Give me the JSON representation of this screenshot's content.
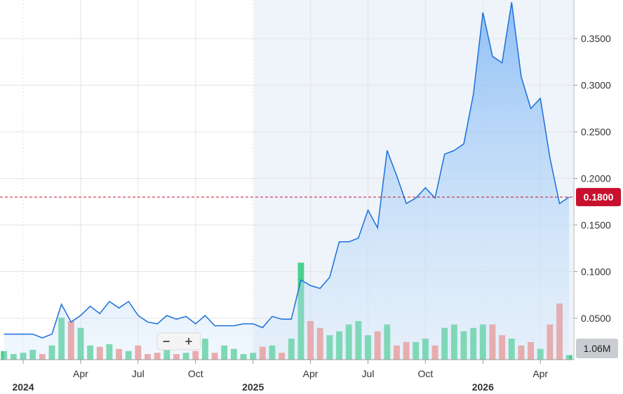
{
  "chart_data": {
    "type": "line",
    "x": [
      -1,
      -0.5,
      0,
      0.5,
      1,
      1.5,
      2,
      2.5,
      3,
      3.5,
      4,
      4.5,
      5,
      5.5,
      6,
      6.5,
      7,
      7.5,
      8,
      8.5,
      9,
      9.5,
      10,
      10.5,
      11,
      11.5,
      12,
      12.5,
      13,
      13.5,
      14,
      14.5,
      15,
      15.5,
      16,
      16.5,
      17,
      17.5,
      18,
      18.5,
      19,
      19.5,
      20,
      20.5,
      21,
      21.5,
      22,
      22.5,
      23,
      23.5,
      24,
      24.5,
      25,
      25.5,
      26,
      26.5,
      27,
      27.5,
      28,
      28.5
    ],
    "series": [
      {
        "color": "#1a6fdc",
        "values": [
          0.033,
          0.033,
          0.033,
          0.033,
          0.029,
          0.033,
          0.065,
          0.046,
          0.053,
          0.063,
          0.055,
          0.068,
          0.061,
          0.068,
          0.053,
          0.046,
          0.044,
          0.053,
          0.049,
          0.052,
          0.044,
          0.053,
          0.042,
          0.042,
          0.042,
          0.044,
          0.044,
          0.04,
          0.052,
          0.049,
          0.049,
          0.091,
          0.085,
          0.082,
          0.094,
          0.132,
          0.132,
          0.136,
          0.166,
          0.147,
          0.23,
          0.203,
          0.173,
          0.179,
          0.19,
          0.179,
          0.226,
          0.23,
          0.237,
          0.29,
          0.378,
          0.331,
          0.324,
          0.389,
          0.309,
          0.275,
          0.286,
          0.222,
          0.173,
          0.18
        ]
      }
    ],
    "volume": {
      "values": [
        2.0,
        1.3,
        1.6,
        2.3,
        1.3,
        3.3,
        9.8,
        9.0,
        7.4,
        3.3,
        3.0,
        3.6,
        2.5,
        2.0,
        3.3,
        1.3,
        1.6,
        3.3,
        1.3,
        1.6,
        2.0,
        4.9,
        1.6,
        3.3,
        2.5,
        1.3,
        1.6,
        3.0,
        3.3,
        1.6,
        4.9,
        22.6,
        9.0,
        7.4,
        5.7,
        6.6,
        8.2,
        9.0,
        5.7,
        6.6,
        8.2,
        3.3,
        4.1,
        4.1,
        4.9,
        3.3,
        7.4,
        8.2,
        6.6,
        7.4,
        8.2,
        8.2,
        5.7,
        4.9,
        3.3,
        4.1,
        2.5,
        8.2,
        13.1,
        1.06
      ],
      "last_label": "1.06M",
      "ylim": [
        0,
        25
      ],
      "up_color": "#4ccf8e",
      "down_color": "#f28b82"
    },
    "last_price": {
      "value": 0.18,
      "label": "0.1800",
      "color": "#c8102e"
    },
    "xlim": [
      -1.21,
      28.75
    ],
    "xticks": [
      {
        "value": 0,
        "label": "2024"
      },
      {
        "value": 3,
        "label": "Apr"
      },
      {
        "value": 6,
        "label": "Jul"
      },
      {
        "value": 9,
        "label": "Oct"
      },
      {
        "value": 12,
        "label": "2025"
      },
      {
        "value": 15,
        "label": "Apr"
      },
      {
        "value": 18,
        "label": "Jul"
      },
      {
        "value": 21,
        "label": "Oct"
      },
      {
        "value": 24,
        "label": "2026"
      },
      {
        "value": 27,
        "label": "Apr"
      }
    ],
    "ylim": [
      0.0056,
      0.3914
    ],
    "yticks": [
      {
        "value": 0.05,
        "label": "0.0500"
      },
      {
        "value": 0.1,
        "label": "0.1000"
      },
      {
        "value": 0.15,
        "label": "0.1500"
      },
      {
        "value": 0.2,
        "label": "0.2000"
      },
      {
        "value": 0.25,
        "label": "0.2500"
      },
      {
        "value": 0.3,
        "label": "0.3000"
      },
      {
        "value": 0.35,
        "label": "0.3500"
      }
    ],
    "grid": true,
    "zoom_controls": {
      "out": "−",
      "in": "+"
    }
  }
}
